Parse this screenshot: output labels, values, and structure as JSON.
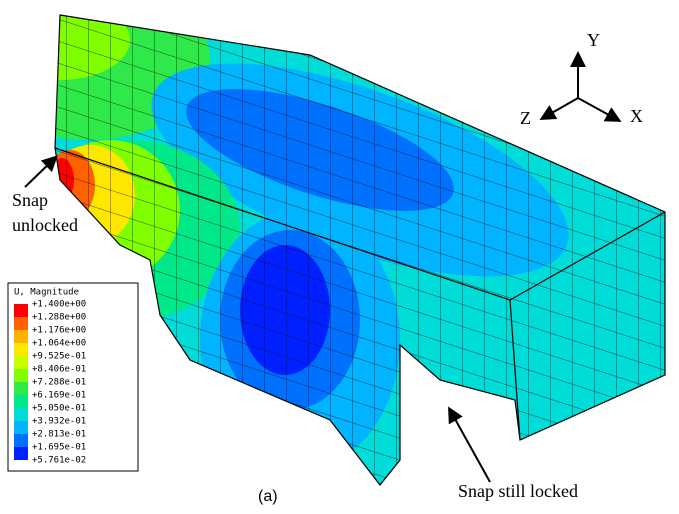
{
  "figure": {
    "triad": {
      "y": "Y",
      "z": "Z",
      "x": "X"
    },
    "annotations": {
      "unlocked_line1": "Snap",
      "unlocked_line2": "unlocked",
      "locked": "Snap still locked"
    },
    "caption": "(a)",
    "legend": {
      "title": "U, Magnitude",
      "labels": [
        "+1.400e+00",
        "+1.288e+00",
        "+1.176e+00",
        "+1.064e+00",
        "+9.525e-01",
        "+8.406e-01",
        "+7.288e-01",
        "+6.169e-01",
        "+5.050e-01",
        "+3.932e-01",
        "+2.813e-01",
        "+1.695e-01",
        "+5.761e-02"
      ],
      "colors": [
        "#ff0000",
        "#ff6000",
        "#ffb000",
        "#ffe800",
        "#c8ff00",
        "#7fff00",
        "#2fe84a",
        "#00e888",
        "#00dcd8",
        "#00b4ff",
        "#0070ff",
        "#0020ff"
      ]
    }
  }
}
